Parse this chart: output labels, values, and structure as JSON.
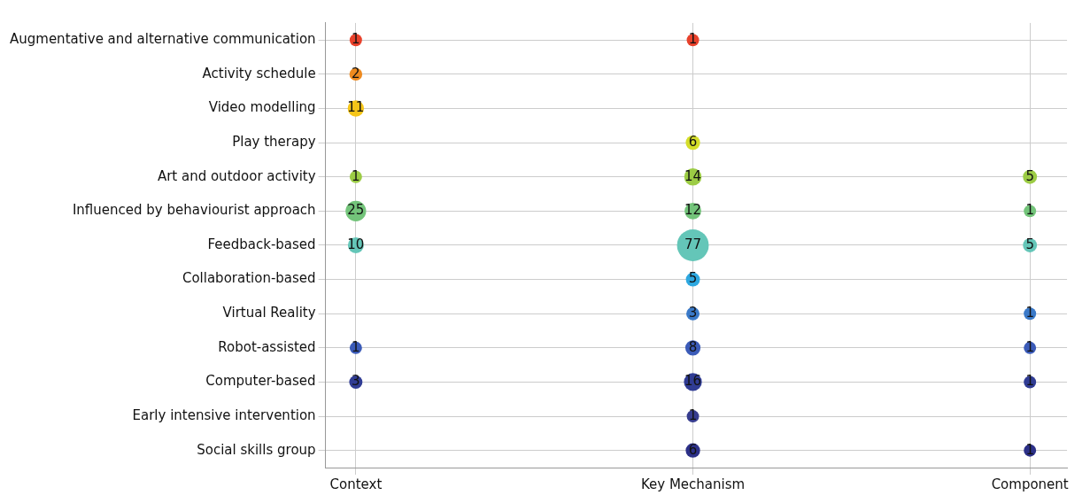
{
  "chart_data": {
    "type": "heatmap",
    "categories": [
      "Context",
      "Key Mechanism",
      "Component"
    ],
    "y_categories": [
      "Augmentative and alternative communication",
      "Activity schedule",
      "Video modelling",
      "Play therapy",
      "Art and outdoor activity",
      "Influenced by behaviourist approach",
      "Feedback-based",
      "Collaboration-based",
      "Virtual Reality",
      "Robot-assisted",
      "Computer-based",
      "Early intensive intervention",
      "Social skills group"
    ],
    "cells": [
      [
        1,
        1,
        null
      ],
      [
        2,
        null,
        null
      ],
      [
        11,
        null,
        null
      ],
      [
        null,
        6,
        null
      ],
      [
        1,
        14,
        5
      ],
      [
        25,
        12,
        1
      ],
      [
        10,
        77,
        5
      ],
      [
        null,
        5,
        null
      ],
      [
        null,
        3,
        1
      ],
      [
        1,
        8,
        1
      ],
      [
        3,
        16,
        1
      ],
      [
        null,
        1,
        null
      ],
      [
        null,
        6,
        1
      ]
    ],
    "colors": [
      "#e8412b",
      "#ee8a1f",
      "#f5c518",
      "#d4dd2a",
      "#9ccc45",
      "#73c47a",
      "#64c6b8",
      "#2ea8e0",
      "#3a79c8",
      "#3b5bb8",
      "#303c94",
      "#363c8e",
      "#2c3088"
    ],
    "data_labels": true,
    "grid": true
  }
}
